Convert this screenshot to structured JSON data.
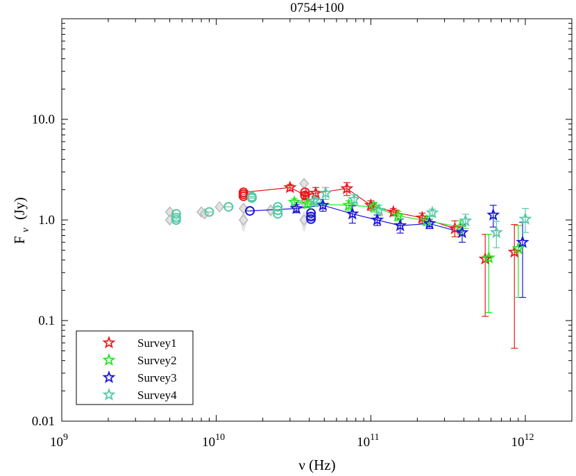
{
  "chart_data": {
    "type": "scatter",
    "title": "0754+100",
    "xlabel": "ν (Hz)",
    "ylabel_main": "F",
    "ylabel_sub": "ν",
    "ylabel_unit": "(Jy)",
    "xscale": "log",
    "yscale": "log",
    "xlim": [
      1000000000.0,
      2000000000000.0
    ],
    "ylim": [
      0.01,
      100
    ],
    "x_ticks": [
      {
        "value": 1000000000.0,
        "base": "10",
        "exp": "9"
      },
      {
        "value": 10000000000.0,
        "base": "10",
        "exp": "10"
      },
      {
        "value": 100000000000.0,
        "base": "10",
        "exp": "11"
      },
      {
        "value": 1000000000000.0,
        "base": "10",
        "exp": "12"
      }
    ],
    "y_ticks": [
      {
        "value": 0.01,
        "label": "0.01"
      },
      {
        "value": 0.1,
        "label": "0.1"
      },
      {
        "value": 1,
        "label": "1.0"
      },
      {
        "value": 10,
        "label": "10.0"
      }
    ],
    "legend_position": "bottom-left",
    "series": [
      {
        "name": "Survey1",
        "color": "#e8191c",
        "connect": true,
        "points": [
          {
            "x": 30000000000.0,
            "y": 2.1,
            "lo": 1.95,
            "hi": 2.25
          },
          {
            "x": 38000000000.0,
            "y": 1.75,
            "lo": 1.6,
            "hi": 1.9
          },
          {
            "x": 44000000000.0,
            "y": 1.85,
            "lo": 1.65,
            "hi": 2.1
          },
          {
            "x": 70000000000.0,
            "y": 2.05,
            "lo": 1.75,
            "hi": 2.35
          },
          {
            "x": 100000000000.0,
            "y": 1.4,
            "lo": 1.25,
            "hi": 1.55
          },
          {
            "x": 140000000000.0,
            "y": 1.2,
            "lo": 1.1,
            "hi": 1.3
          },
          {
            "x": 215000000000.0,
            "y": 1.05,
            "lo": 0.93,
            "hi": 1.17
          },
          {
            "x": 350000000000.0,
            "y": 0.82,
            "lo": 0.68,
            "hi": 0.98
          },
          {
            "x": 550000000000.0,
            "y": 0.41,
            "lo": 0.11,
            "hi": 0.72
          },
          {
            "x": 850000000000.0,
            "y": 0.48,
            "lo": 0.053,
            "hi": 0.9
          }
        ]
      },
      {
        "name": "Survey2",
        "color": "#22e61e",
        "connect": true,
        "points": [
          {
            "x": 32000000000.0,
            "y": 1.5,
            "lo": 1.38,
            "hi": 1.62
          },
          {
            "x": 39000000000.0,
            "y": 1.45,
            "lo": 1.32,
            "hi": 1.58
          },
          {
            "x": 72000000000.0,
            "y": 1.4,
            "lo": 1.25,
            "hi": 1.55
          },
          {
            "x": 105000000000.0,
            "y": 1.35,
            "lo": 1.2,
            "hi": 1.5
          },
          {
            "x": 150000000000.0,
            "y": 1.1,
            "lo": 0.98,
            "hi": 1.22
          },
          {
            "x": 230000000000.0,
            "y": 0.98,
            "lo": 0.88,
            "hi": 1.08
          },
          {
            "x": 380000000000.0,
            "y": 0.85,
            "lo": 0.72,
            "hi": 0.98
          },
          {
            "x": 580000000000.0,
            "y": 0.42,
            "lo": 0.12,
            "hi": 0.72
          },
          {
            "x": 900000000000.0,
            "y": 0.52,
            "lo": 0.17,
            "hi": 0.88
          }
        ]
      },
      {
        "name": "Survey3",
        "color": "#1a16d6",
        "connect": true,
        "points": [
          {
            "x": 33000000000.0,
            "y": 1.3,
            "lo": 1.18,
            "hi": 1.42
          },
          {
            "x": 49000000000.0,
            "y": 1.4,
            "lo": 1.22,
            "hi": 1.6
          },
          {
            "x": 76000000000.0,
            "y": 1.15,
            "lo": 0.93,
            "hi": 1.38
          },
          {
            "x": 110000000000.0,
            "y": 1.0,
            "lo": 0.88,
            "hi": 1.12
          },
          {
            "x": 155000000000.0,
            "y": 0.88,
            "lo": 0.74,
            "hi": 1.02
          },
          {
            "x": 240000000000.0,
            "y": 0.92,
            "lo": 0.82,
            "hi": 1.02
          },
          {
            "x": 390000000000.0,
            "y": 0.75,
            "lo": 0.6,
            "hi": 0.9
          },
          {
            "x": 620000000000.0,
            "y": 1.12,
            "lo": 0.85,
            "hi": 1.4
          },
          {
            "x": 960000000000.0,
            "y": 0.6,
            "lo": 0.17,
            "hi": 0.95
          }
        ]
      },
      {
        "name": "Survey4",
        "color": "#56c8a6",
        "connect": false,
        "points": [
          {
            "x": 43000000000.0,
            "y": 1.55,
            "lo": 1.4,
            "hi": 1.7
          },
          {
            "x": 51000000000.0,
            "y": 1.85,
            "lo": 1.6,
            "hi": 2.1
          },
          {
            "x": 78000000000.0,
            "y": 1.6,
            "lo": 1.42,
            "hi": 1.78
          },
          {
            "x": 113000000000.0,
            "y": 1.25,
            "lo": 1.1,
            "hi": 1.4
          },
          {
            "x": 250000000000.0,
            "y": 1.18,
            "lo": 1.08,
            "hi": 1.28
          },
          {
            "x": 410000000000.0,
            "y": 0.98,
            "lo": 0.82,
            "hi": 1.14
          },
          {
            "x": 650000000000.0,
            "y": 0.75,
            "lo": 0.53,
            "hi": 0.97
          },
          {
            "x": 1000000000000.0,
            "y": 1.02,
            "lo": 0.75,
            "hi": 1.3
          }
        ]
      }
    ],
    "circle_series": [
      {
        "name": "Survey1 circles",
        "color": "#e8191c",
        "connect": true,
        "points": [
          {
            "x": 15000000000.0,
            "y": 1.88
          },
          {
            "x": 15000000000.0,
            "y": 1.8
          },
          {
            "x": 15000000000.0,
            "y": 1.72
          },
          {
            "x": 37500000000.0,
            "y": 1.88
          },
          {
            "x": 37500000000.0,
            "y": 1.75
          }
        ]
      },
      {
        "name": "Survey3 circles",
        "color": "#1a16d6",
        "connect": true,
        "points": [
          {
            "x": 16500000000.0,
            "y": 1.23
          },
          {
            "x": 41000000000.0,
            "y": 1.17
          },
          {
            "x": 41000000000.0,
            "y": 1.08
          },
          {
            "x": 41000000000.0,
            "y": 1.02
          }
        ]
      },
      {
        "name": "Survey4 circles",
        "color": "#56c8a6",
        "connect": false,
        "points": [
          {
            "x": 5500000000.0,
            "y": 1.15
          },
          {
            "x": 5500000000.0,
            "y": 1.05
          },
          {
            "x": 5500000000.0,
            "y": 1.0
          },
          {
            "x": 9000000000.0,
            "y": 1.2
          },
          {
            "x": 12000000000.0,
            "y": 1.35
          },
          {
            "x": 17000000000.0,
            "y": 1.7
          },
          {
            "x": 17000000000.0,
            "y": 1.65
          },
          {
            "x": 25000000000.0,
            "y": 1.35
          },
          {
            "x": 25000000000.0,
            "y": 1.25
          },
          {
            "x": 25000000000.0,
            "y": 1.15
          },
          {
            "x": 45000000000.0,
            "y": 1.5
          }
        ]
      }
    ],
    "historical": {
      "name": "archival (gray diamonds)",
      "color": "#b8b8b8",
      "points": [
        {
          "x": 5000000000.0,
          "y": 1.2,
          "lo": 1.05,
          "hi": 1.35
        },
        {
          "x": 5000000000.0,
          "y": 1.0,
          "lo": 0.9,
          "hi": 1.12
        },
        {
          "x": 8000000000.0,
          "y": 1.2,
          "lo": 1.1,
          "hi": 1.3
        },
        {
          "x": 8400000000.0,
          "y": 1.15,
          "lo": 1.05,
          "hi": 1.25
        },
        {
          "x": 10500000000.0,
          "y": 1.35,
          "lo": 1.25,
          "hi": 1.45
        },
        {
          "x": 15000000000.0,
          "y": 1.0,
          "lo": 0.75,
          "hi": 1.25
        },
        {
          "x": 15000000000.0,
          "y": 1.3,
          "lo": 1.15,
          "hi": 1.45
        },
        {
          "x": 22500000000.0,
          "y": 1.25,
          "lo": 1.05,
          "hi": 1.45
        },
        {
          "x": 37000000000.0,
          "y": 2.3,
          "lo": 2.0,
          "hi": 2.6
        },
        {
          "x": 37000000000.0,
          "y": 1.0,
          "lo": 0.75,
          "hi": 1.25
        },
        {
          "x": 37000000000.0,
          "y": 1.5,
          "lo": 1.3,
          "hi": 1.7
        }
      ]
    }
  }
}
